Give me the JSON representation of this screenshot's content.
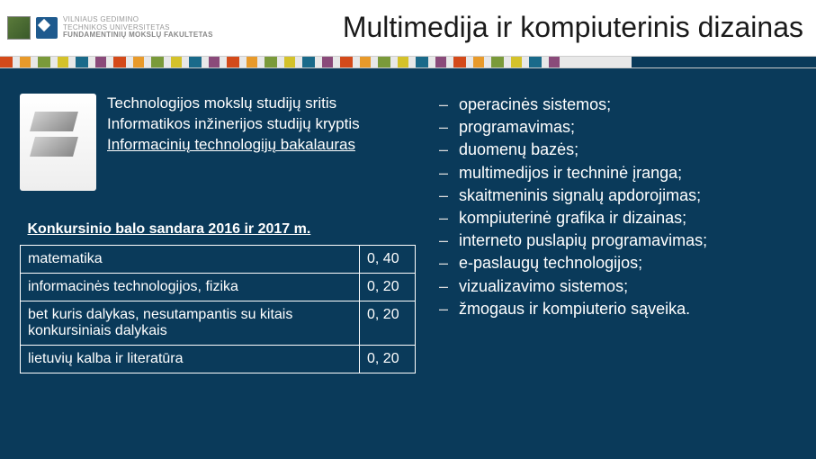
{
  "header": {
    "logo_text_line1": "VILNIAUS GEDIMINO",
    "logo_text_line2": "TECHNIKOS UNIVERSITETAS",
    "logo_text_line3": "FUNDAMENTINIŲ MOKSLŲ FAKULTETAS",
    "title": "Multimedija ir kompiuterinis dizainas"
  },
  "stripe_colors": [
    {
      "c": "#d44a1a",
      "w": 14
    },
    {
      "c": "#e8e8e8",
      "w": 8
    },
    {
      "c": "#e89a2a",
      "w": 12
    },
    {
      "c": "#e8e8e8",
      "w": 8
    },
    {
      "c": "#7a9a3a",
      "w": 14
    },
    {
      "c": "#e8e8e8",
      "w": 8
    },
    {
      "c": "#d4c22a",
      "w": 12
    },
    {
      "c": "#e8e8e8",
      "w": 8
    },
    {
      "c": "#1a6a8a",
      "w": 14
    },
    {
      "c": "#e8e8e8",
      "w": 8
    },
    {
      "c": "#8a4a7a",
      "w": 12
    },
    {
      "c": "#e8e8e8",
      "w": 8
    },
    {
      "c": "#d44a1a",
      "w": 14
    },
    {
      "c": "#e8e8e8",
      "w": 8
    },
    {
      "c": "#e89a2a",
      "w": 12
    },
    {
      "c": "#e8e8e8",
      "w": 8
    },
    {
      "c": "#7a9a3a",
      "w": 14
    },
    {
      "c": "#e8e8e8",
      "w": 8
    },
    {
      "c": "#d4c22a",
      "w": 12
    },
    {
      "c": "#e8e8e8",
      "w": 8
    },
    {
      "c": "#1a6a8a",
      "w": 14
    },
    {
      "c": "#e8e8e8",
      "w": 8
    },
    {
      "c": "#8a4a7a",
      "w": 12
    },
    {
      "c": "#e8e8e8",
      "w": 8
    },
    {
      "c": "#d44a1a",
      "w": 14
    },
    {
      "c": "#e8e8e8",
      "w": 8
    },
    {
      "c": "#e89a2a",
      "w": 12
    },
    {
      "c": "#e8e8e8",
      "w": 8
    },
    {
      "c": "#7a9a3a",
      "w": 14
    },
    {
      "c": "#e8e8e8",
      "w": 8
    },
    {
      "c": "#d4c22a",
      "w": 12
    },
    {
      "c": "#e8e8e8",
      "w": 8
    },
    {
      "c": "#1a6a8a",
      "w": 14
    },
    {
      "c": "#e8e8e8",
      "w": 8
    },
    {
      "c": "#8a4a7a",
      "w": 12
    },
    {
      "c": "#e8e8e8",
      "w": 8
    },
    {
      "c": "#d44a1a",
      "w": 14
    },
    {
      "c": "#e8e8e8",
      "w": 8
    },
    {
      "c": "#e89a2a",
      "w": 12
    },
    {
      "c": "#e8e8e8",
      "w": 8
    },
    {
      "c": "#7a9a3a",
      "w": 14
    },
    {
      "c": "#e8e8e8",
      "w": 8
    },
    {
      "c": "#d4c22a",
      "w": 12
    },
    {
      "c": "#e8e8e8",
      "w": 8
    },
    {
      "c": "#1a6a8a",
      "w": 14
    },
    {
      "c": "#e8e8e8",
      "w": 8
    },
    {
      "c": "#8a4a7a",
      "w": 12
    },
    {
      "c": "#e8e8e8",
      "w": 8
    },
    {
      "c": "#d44a1a",
      "w": 14
    },
    {
      "c": "#e8e8e8",
      "w": 8
    },
    {
      "c": "#e89a2a",
      "w": 12
    },
    {
      "c": "#e8e8e8",
      "w": 8
    },
    {
      "c": "#7a9a3a",
      "w": 14
    },
    {
      "c": "#e8e8e8",
      "w": 8
    },
    {
      "c": "#d4c22a",
      "w": 12
    },
    {
      "c": "#e8e8e8",
      "w": 8
    },
    {
      "c": "#1a6a8a",
      "w": 14
    },
    {
      "c": "#e8e8e8",
      "w": 8
    },
    {
      "c": "#8a4a7a",
      "w": 12
    },
    {
      "c": "#e8e8e8",
      "w": 80
    }
  ],
  "intro": {
    "line1": "Technologijos mokslų studijų sritis",
    "line2": "Informatikos inžinerijos studijų kryptis",
    "line3": "Informacinių technologijų bakalauras"
  },
  "table": {
    "heading": "Konkursinio balo sandara 2016 ir 2017 m.",
    "rows": [
      {
        "label": "matematika",
        "value": "0, 40"
      },
      {
        "label": "informacinės technologijos, fizika",
        "value": "0, 20"
      },
      {
        "label": "bet kuris dalykas, nesutampantis su kitais konkursiniais dalykais",
        "value": "0, 20"
      },
      {
        "label": "lietuvių kalba ir literatūra",
        "value": "0, 20"
      }
    ]
  },
  "bullets": [
    "operacinės sistemos;",
    "programavimas;",
    "duomenų bazės;",
    "multimedijos ir techninė įranga;",
    "skaitmeninis signalų apdorojimas;",
    "kompiuterinė grafika ir dizainas;",
    "interneto puslapių programavimas;",
    "e-paslaugų technologijos;",
    "vizualizavimo sistemos;",
    "žmogaus ir kompiuterio sąveika."
  ]
}
